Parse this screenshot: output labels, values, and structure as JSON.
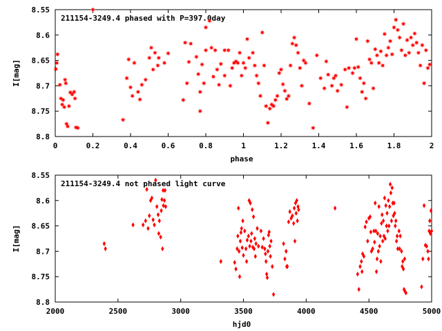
{
  "chart_data": [
    {
      "type": "scatter",
      "title": "211154-3249.4 phased with P=397.0day",
      "xlabel": "phase",
      "ylabel": "I[mag]",
      "xlim": [
        0,
        2
      ],
      "ylim": [
        8.8,
        8.55
      ],
      "y_inverted": true,
      "xticks": [
        0,
        0.2,
        0.4,
        0.6,
        0.8,
        1,
        1.2,
        1.4,
        1.6,
        1.8,
        2
      ],
      "xtick_labels": [
        "0",
        "0.2",
        "0.4",
        "0.6",
        "0.8",
        "1",
        "1.2",
        "1.4",
        "1.6",
        "1.8",
        "2"
      ],
      "yticks": [
        8.55,
        8.6,
        8.65,
        8.7,
        8.75,
        8.8
      ],
      "ytick_labels": [
        "8.55",
        "8.6",
        "8.65",
        "8.7",
        "8.75",
        "8.8"
      ],
      "marker": "star",
      "color": "#ff0000",
      "points": [
        [
          0.003,
          8.667
        ],
        [
          0.008,
          8.655
        ],
        [
          0.012,
          8.638
        ],
        [
          0.025,
          8.698
        ],
        [
          0.03,
          8.725
        ],
        [
          0.037,
          8.737
        ],
        [
          0.042,
          8.728
        ],
        [
          0.048,
          8.742
        ],
        [
          0.052,
          8.688
        ],
        [
          0.056,
          8.695
        ],
        [
          0.06,
          8.775
        ],
        [
          0.066,
          8.78
        ],
        [
          0.073,
          8.74
        ],
        [
          0.08,
          8.713
        ],
        [
          0.09,
          8.717
        ],
        [
          0.1,
          8.712
        ],
        [
          0.105,
          8.725
        ],
        [
          0.11,
          8.782
        ],
        [
          0.12,
          8.783
        ],
        [
          0.36,
          8.767
        ],
        [
          0.38,
          8.685
        ],
        [
          0.39,
          8.648
        ],
        [
          0.4,
          8.703
        ],
        [
          0.41,
          8.72
        ],
        [
          0.42,
          8.655
        ],
        [
          0.44,
          8.712
        ],
        [
          0.45,
          8.727
        ],
        [
          0.46,
          8.698
        ],
        [
          0.48,
          8.688
        ],
        [
          0.5,
          8.645
        ],
        [
          0.51,
          8.625
        ],
        [
          0.52,
          8.668
        ],
        [
          0.53,
          8.635
        ],
        [
          0.545,
          8.66
        ],
        [
          0.55,
          8.645
        ],
        [
          0.58,
          8.655
        ],
        [
          0.6,
          8.636
        ],
        [
          0.68,
          8.728
        ],
        [
          0.69,
          8.615
        ],
        [
          0.7,
          8.695
        ],
        [
          0.71,
          8.653
        ],
        [
          0.72,
          8.617
        ],
        [
          0.75,
          8.643
        ],
        [
          0.76,
          8.677
        ],
        [
          0.77,
          8.712
        ],
        [
          0.77,
          8.75
        ],
        [
          0.78,
          8.658
        ],
        [
          0.79,
          8.695
        ],
        [
          0.8,
          8.63
        ],
        [
          0.8,
          8.585
        ],
        [
          0.82,
          8.572
        ],
        [
          0.83,
          8.625
        ],
        [
          0.84,
          8.682
        ],
        [
          0.85,
          8.63
        ],
        [
          0.86,
          8.668
        ],
        [
          0.87,
          8.698
        ],
        [
          0.88,
          8.657
        ],
        [
          0.9,
          8.63
        ],
        [
          0.9,
          8.68
        ],
        [
          0.92,
          8.63
        ],
        [
          0.93,
          8.7
        ],
        [
          0.94,
          8.665
        ],
        [
          0.95,
          8.655
        ],
        [
          0.96,
          8.652
        ],
        [
          0.97,
          8.655
        ],
        [
          0.98,
          8.635
        ],
        [
          0.99,
          8.68
        ],
        [
          1,
          8.655
        ],
        [
          1.01,
          8.665
        ],
        [
          1.02,
          8.608
        ],
        [
          1.03,
          8.645
        ],
        [
          1.05,
          8.635
        ],
        [
          1.06,
          8.66
        ],
        [
          1.07,
          8.68
        ],
        [
          1.08,
          8.695
        ],
        [
          1.09,
          8.72
        ],
        [
          1.1,
          8.595
        ],
        [
          1.11,
          8.66
        ],
        [
          1.12,
          8.74
        ],
        [
          1.13,
          8.773
        ],
        [
          1.14,
          8.745
        ],
        [
          1.15,
          8.737
        ],
        [
          1.16,
          8.74
        ],
        [
          1.17,
          8.728
        ],
        [
          1.18,
          8.72
        ],
        [
          1.19,
          8.675
        ],
        [
          1.2,
          8.668
        ],
        [
          1.21,
          8.697
        ],
        [
          1.22,
          8.71
        ],
        [
          1.23,
          8.726
        ],
        [
          1.24,
          8.72
        ],
        [
          1.25,
          8.66
        ],
        [
          1.26,
          8.617
        ],
        [
          1.27,
          8.605
        ],
        [
          1.28,
          8.62
        ],
        [
          1.29,
          8.635
        ],
        [
          1.3,
          8.665
        ],
        [
          1.31,
          8.7
        ],
        [
          1.32,
          8.65
        ],
        [
          1.33,
          8.655
        ],
        [
          1.35,
          8.735
        ],
        [
          1.37,
          8.783
        ],
        [
          1.39,
          8.64
        ],
        [
          1.41,
          8.685
        ],
        [
          1.43,
          8.705
        ],
        [
          1.44,
          8.652
        ],
        [
          1.45,
          8.678
        ],
        [
          1.47,
          8.7
        ],
        [
          1.48,
          8.685
        ],
        [
          1.49,
          8.68
        ],
        [
          1.5,
          8.71
        ],
        [
          1.52,
          8.698
        ],
        [
          1.54,
          8.668
        ],
        [
          1.55,
          8.742
        ],
        [
          1.56,
          8.665
        ],
        [
          1.58,
          8.675
        ],
        [
          1.59,
          8.665
        ],
        [
          1.6,
          8.608
        ],
        [
          1.61,
          8.663
        ],
        [
          1.62,
          8.685
        ],
        [
          1.63,
          8.712
        ],
        [
          1.64,
          8.695
        ],
        [
          1.65,
          8.725
        ],
        [
          1.66,
          8.612
        ],
        [
          1.67,
          8.648
        ],
        [
          1.68,
          8.655
        ],
        [
          1.69,
          8.705
        ],
        [
          1.7,
          8.628
        ],
        [
          1.71,
          8.64
        ],
        [
          1.72,
          8.655
        ],
        [
          1.73,
          8.632
        ],
        [
          1.74,
          8.66
        ],
        [
          1.75,
          8.598
        ],
        [
          1.76,
          8.64
        ],
        [
          1.77,
          8.625
        ],
        [
          1.78,
          8.612
        ],
        [
          1.79,
          8.638
        ],
        [
          1.8,
          8.585
        ],
        [
          1.81,
          8.57
        ],
        [
          1.82,
          8.59
        ],
        [
          1.83,
          8.605
        ],
        [
          1.84,
          8.63
        ],
        [
          1.85,
          8.578
        ],
        [
          1.86,
          8.64
        ],
        [
          1.87,
          8.61
        ],
        [
          1.88,
          8.635
        ],
        [
          1.89,
          8.605
        ],
        [
          1.9,
          8.62
        ],
        [
          1.91,
          8.597
        ],
        [
          1.92,
          8.615
        ],
        [
          1.93,
          8.635
        ],
        [
          1.94,
          8.66
        ],
        [
          1.95,
          8.62
        ],
        [
          1.96,
          8.695
        ],
        [
          1.97,
          8.63
        ],
        [
          1.98,
          8.665
        ],
        [
          1.99,
          8.658
        ],
        [
          0.2,
          8.55
        ]
      ]
    },
    {
      "type": "scatter",
      "title": "211154-3249.4 not phased light curve",
      "xlabel": "hjd0",
      "ylabel": "I[mag]",
      "xlim": [
        2000,
        5000
      ],
      "ylim": [
        8.8,
        8.55
      ],
      "y_inverted": true,
      "xticks": [
        2000,
        2500,
        3000,
        3500,
        4000,
        4500,
        5000
      ],
      "xtick_labels": [
        "2000",
        "2500",
        "3000",
        "3500",
        "4000",
        "4500",
        "5000"
      ],
      "yticks": [
        8.55,
        8.6,
        8.65,
        8.7,
        8.75,
        8.8
      ],
      "ytick_labels": [
        "8.55",
        "8.6",
        "8.65",
        "8.7",
        "8.75",
        "8.8"
      ],
      "marker": "diamond",
      "color": "#ff0000",
      "points": [
        [
          2390,
          8.685
        ],
        [
          2400,
          8.695
        ],
        [
          2620,
          8.648
        ],
        [
          2700,
          8.648
        ],
        [
          2720,
          8.64
        ],
        [
          2730,
          8.578
        ],
        [
          2740,
          8.655
        ],
        [
          2750,
          8.63
        ],
        [
          2760,
          8.6
        ],
        [
          2770,
          8.595
        ],
        [
          2780,
          8.638
        ],
        [
          2790,
          8.648
        ],
        [
          2800,
          8.56
        ],
        [
          2810,
          8.612
        ],
        [
          2820,
          8.628
        ],
        [
          2825,
          8.665
        ],
        [
          2830,
          8.64
        ],
        [
          2840,
          8.672
        ],
        [
          2845,
          8.62
        ],
        [
          2850,
          8.598
        ],
        [
          2855,
          8.695
        ],
        [
          2860,
          8.58
        ],
        [
          2862,
          8.61
        ],
        [
          2870,
          8.6
        ],
        [
          2875,
          8.58
        ],
        [
          2880,
          8.612
        ],
        [
          3320,
          8.72
        ],
        [
          3430,
          8.722
        ],
        [
          3440,
          8.735
        ],
        [
          3450,
          8.695
        ],
        [
          3455,
          8.67
        ],
        [
          3460,
          8.615
        ],
        [
          3465,
          8.7
        ],
        [
          3470,
          8.75
        ],
        [
          3475,
          8.68
        ],
        [
          3480,
          8.663
        ],
        [
          3485,
          8.655
        ],
        [
          3490,
          8.693
        ],
        [
          3495,
          8.64
        ],
        [
          3500,
          8.708
        ],
        [
          3510,
          8.66
        ],
        [
          3520,
          8.695
        ],
        [
          3525,
          8.72
        ],
        [
          3530,
          8.678
        ],
        [
          3540,
          8.67
        ],
        [
          3545,
          8.6
        ],
        [
          3550,
          8.69
        ],
        [
          3555,
          8.605
        ],
        [
          3560,
          8.68
        ],
        [
          3565,
          8.665
        ],
        [
          3570,
          8.618
        ],
        [
          3575,
          8.692
        ],
        [
          3580,
          8.632
        ],
        [
          3585,
          8.695
        ],
        [
          3590,
          8.675
        ],
        [
          3595,
          8.71
        ],
        [
          3600,
          8.685
        ],
        [
          3610,
          8.655
        ],
        [
          3620,
          8.69
        ],
        [
          3640,
          8.66
        ],
        [
          3650,
          8.692
        ],
        [
          3660,
          8.675
        ],
        [
          3670,
          8.695
        ],
        [
          3675,
          8.705
        ],
        [
          3680,
          8.72
        ],
        [
          3685,
          8.745
        ],
        [
          3690,
          8.752
        ],
        [
          3695,
          8.7
        ],
        [
          3700,
          8.668
        ],
        [
          3705,
          8.662
        ],
        [
          3710,
          8.69
        ],
        [
          3715,
          8.71
        ],
        [
          3720,
          8.68
        ],
        [
          3730,
          8.73
        ],
        [
          3740,
          8.785
        ],
        [
          3820,
          8.685
        ],
        [
          3830,
          8.715
        ],
        [
          3840,
          8.7
        ],
        [
          3845,
          8.73
        ],
        [
          3850,
          8.73
        ],
        [
          3860,
          8.642
        ],
        [
          3870,
          8.622
        ],
        [
          3880,
          8.635
        ],
        [
          3890,
          8.63
        ],
        [
          3900,
          8.645
        ],
        [
          3905,
          8.615
        ],
        [
          3910,
          8.68
        ],
        [
          3915,
          8.605
        ],
        [
          3920,
          8.625
        ],
        [
          3925,
          8.6
        ],
        [
          3930,
          8.64
        ],
        [
          3935,
          8.612
        ],
        [
          3940,
          8.618
        ],
        [
          4230,
          8.615
        ],
        [
          4410,
          8.745
        ],
        [
          4420,
          8.775
        ],
        [
          4430,
          8.73
        ],
        [
          4440,
          8.72
        ],
        [
          4445,
          8.74
        ],
        [
          4450,
          8.705
        ],
        [
          4460,
          8.71
        ],
        [
          4470,
          8.652
        ],
        [
          4480,
          8.642
        ],
        [
          4490,
          8.68
        ],
        [
          4500,
          8.635
        ],
        [
          4510,
          8.632
        ],
        [
          4515,
          8.662
        ],
        [
          4520,
          8.7
        ],
        [
          4530,
          8.695
        ],
        [
          4540,
          8.66
        ],
        [
          4545,
          8.682
        ],
        [
          4550,
          8.605
        ],
        [
          4555,
          8.66
        ],
        [
          4560,
          8.74
        ],
        [
          4565,
          8.715
        ],
        [
          4570,
          8.665
        ],
        [
          4575,
          8.7
        ],
        [
          4580,
          8.612
        ],
        [
          4585,
          8.69
        ],
        [
          4590,
          8.67
        ],
        [
          4595,
          8.72
        ],
        [
          4600,
          8.645
        ],
        [
          4605,
          8.628
        ],
        [
          4610,
          8.68
        ],
        [
          4615,
          8.64
        ],
        [
          4620,
          8.67
        ],
        [
          4625,
          8.595
        ],
        [
          4630,
          8.675
        ],
        [
          4635,
          8.61
        ],
        [
          4640,
          8.65
        ],
        [
          4645,
          8.625
        ],
        [
          4650,
          8.66
        ],
        [
          4655,
          8.6
        ],
        [
          4660,
          8.65
        ],
        [
          4665,
          8.612
        ],
        [
          4670,
          8.568
        ],
        [
          4675,
          8.585
        ],
        [
          4680,
          8.64
        ],
        [
          4685,
          8.575
        ],
        [
          4690,
          8.605
        ],
        [
          4695,
          8.63
        ],
        [
          4700,
          8.605
        ],
        [
          4705,
          8.625
        ],
        [
          4710,
          8.65
        ],
        [
          4715,
          8.64
        ],
        [
          4720,
          8.68
        ],
        [
          4725,
          8.67
        ],
        [
          4730,
          8.695
        ],
        [
          4740,
          8.66
        ],
        [
          4745,
          8.695
        ],
        [
          4750,
          8.67
        ],
        [
          4760,
          8.7
        ],
        [
          4765,
          8.73
        ],
        [
          4770,
          8.72
        ],
        [
          4775,
          8.735
        ],
        [
          4780,
          8.775
        ],
        [
          4785,
          8.715
        ],
        [
          4790,
          8.78
        ],
        [
          4795,
          8.782
        ],
        [
          4920,
          8.77
        ],
        [
          4930,
          8.715
        ],
        [
          4940,
          8.61
        ],
        [
          4950,
          8.688
        ],
        [
          4960,
          8.69
        ],
        [
          4970,
          8.7
        ],
        [
          4975,
          8.715
        ],
        [
          4980,
          8.66
        ],
        [
          4985,
          8.64
        ],
        [
          4990,
          8.665
        ],
        [
          4995,
          8.62
        ],
        [
          5000,
          8.66
        ]
      ]
    }
  ]
}
